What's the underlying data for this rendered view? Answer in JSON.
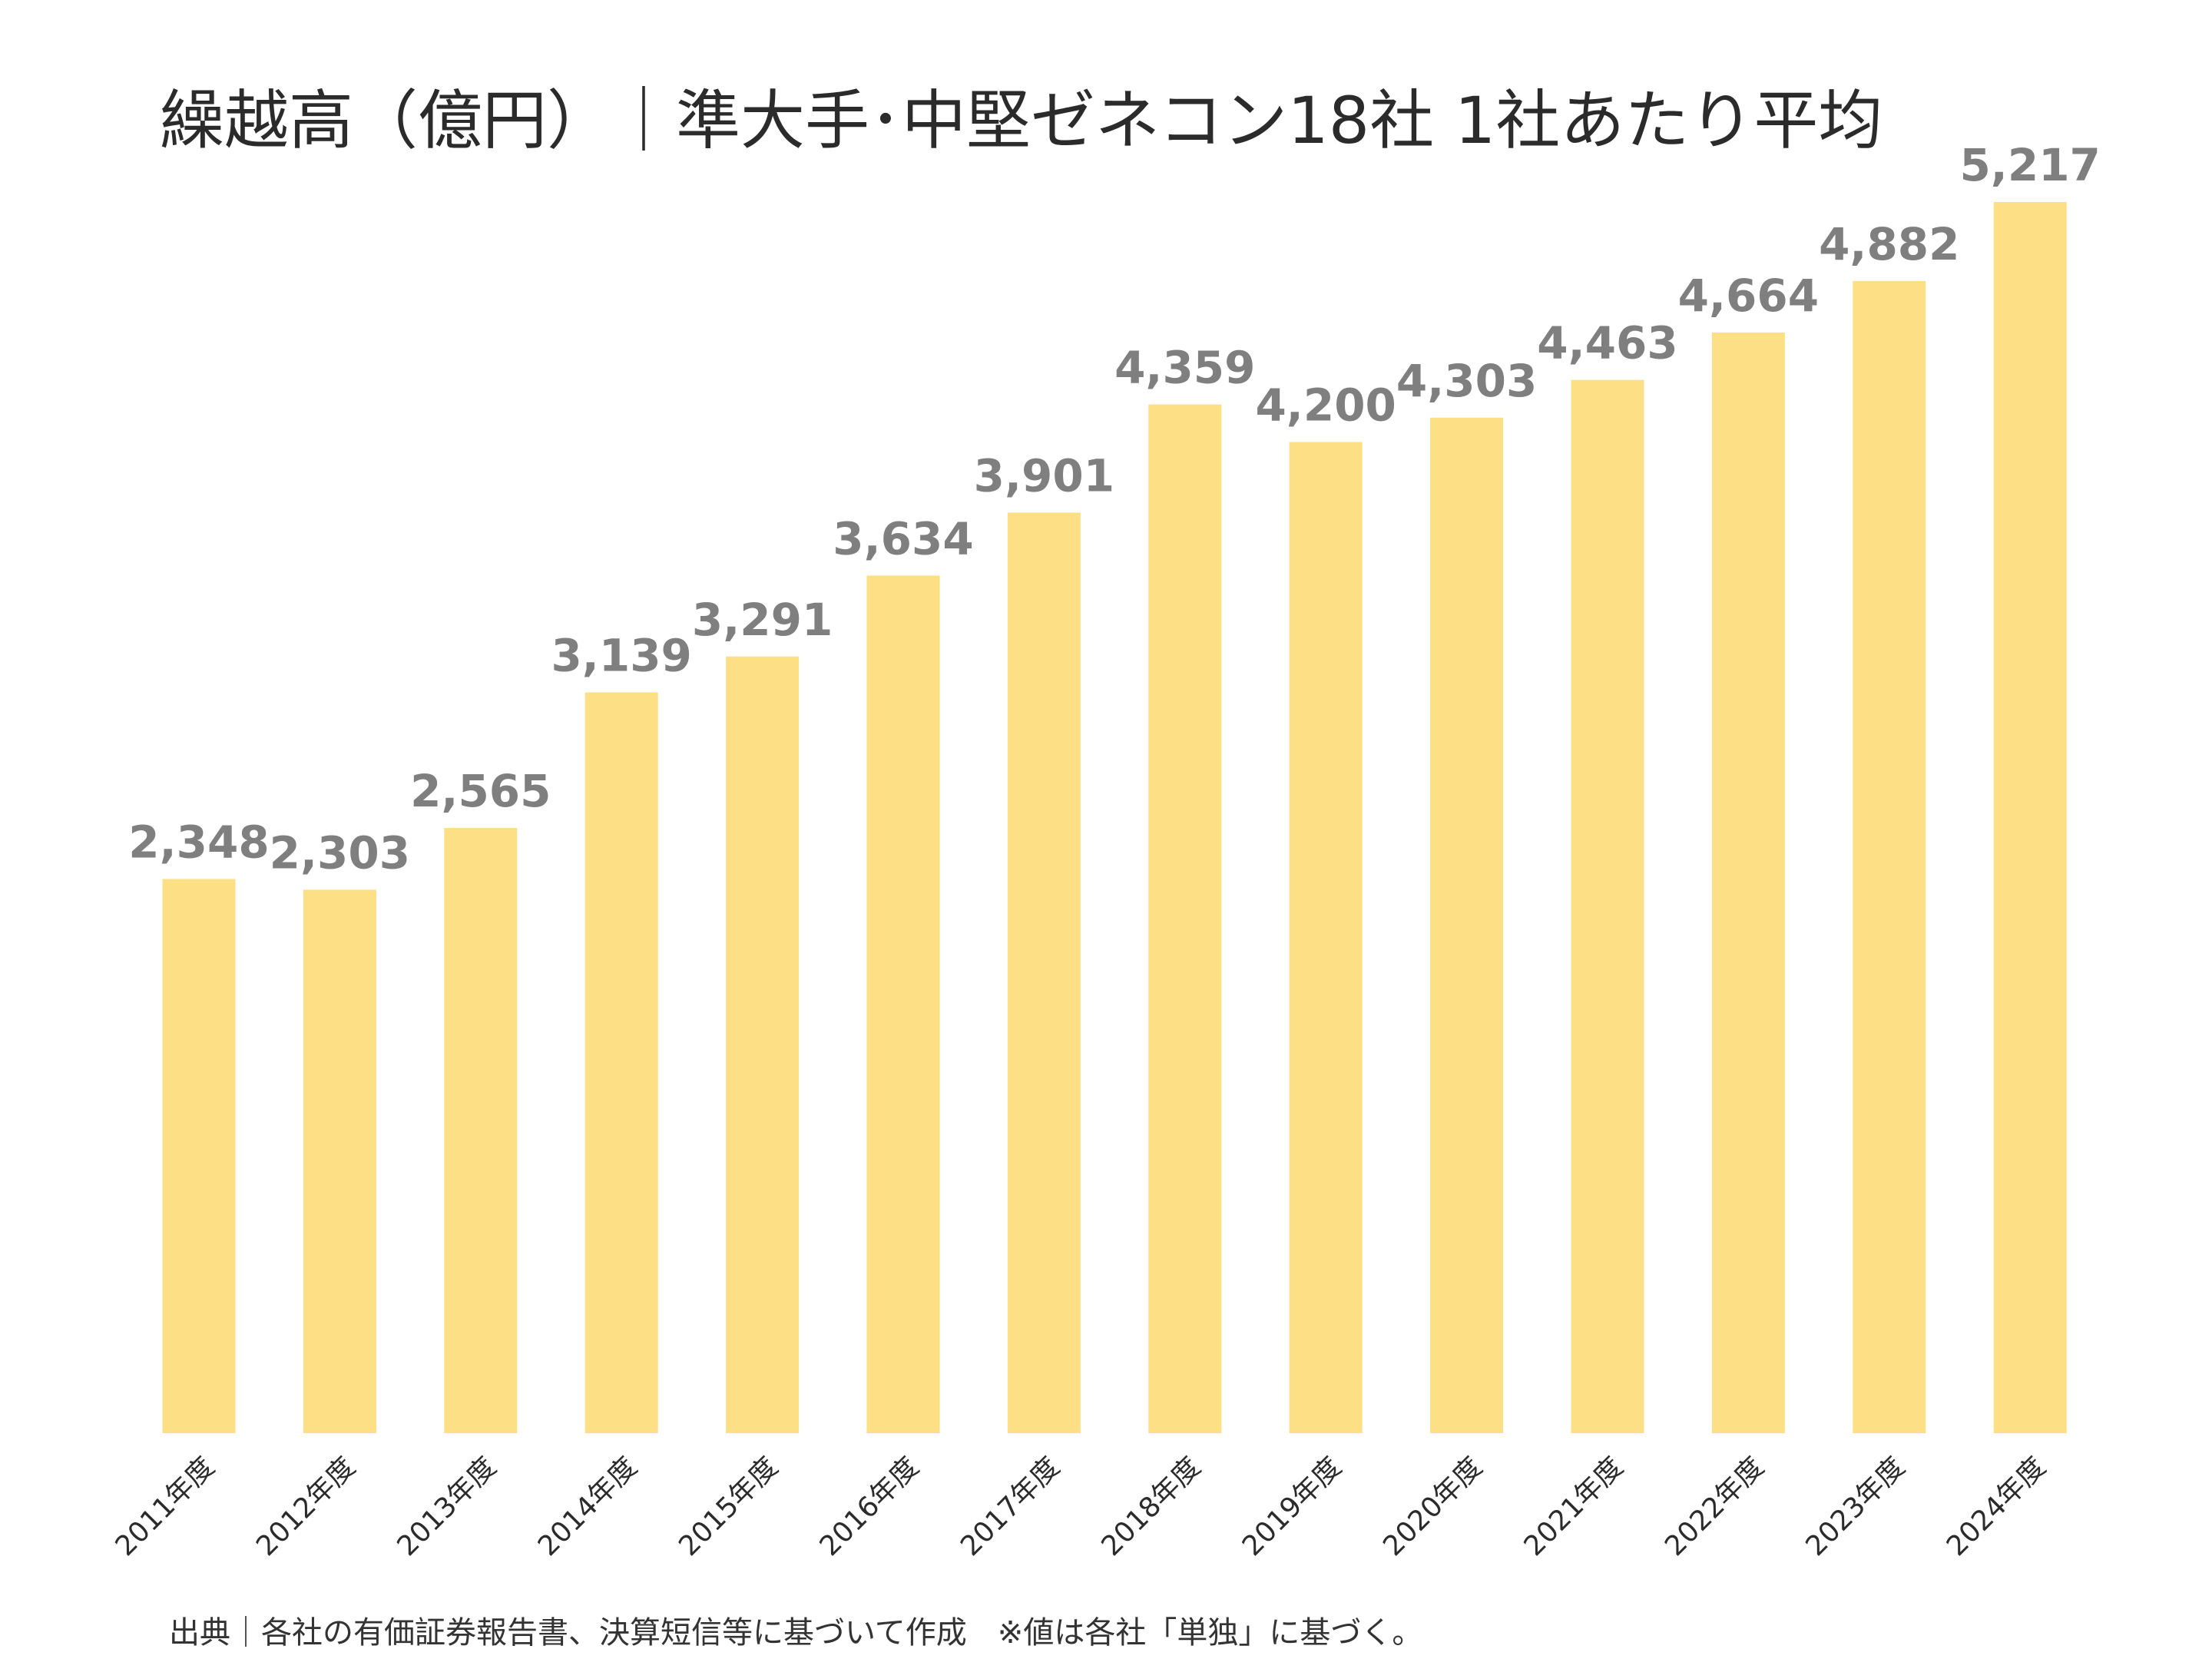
{
  "chart_data": {
    "type": "bar",
    "title": "繰越高（億円）｜準大手･中堅ゼネコン18社 1社あたり平均",
    "categories": [
      "2011年度",
      "2012年度",
      "2013年度",
      "2014年度",
      "2015年度",
      "2016年度",
      "2017年度",
      "2018年度",
      "2019年度",
      "2020年度",
      "2021年度",
      "2022年度",
      "2023年度",
      "2024年度"
    ],
    "values": [
      2348,
      2303,
      2565,
      3139,
      3291,
      3634,
      3901,
      4359,
      4200,
      4303,
      4463,
      4664,
      4882,
      5217
    ],
    "value_labels": [
      "2,348",
      "2,303",
      "2,565",
      "3,139",
      "3,291",
      "3,634",
      "3,901",
      "4,359",
      "4,200",
      "4,303",
      "4,463",
      "4,664",
      "4,882",
      "5,217"
    ],
    "xlabel": "",
    "ylabel": "",
    "ylim": [
      0,
      5217
    ],
    "grid": false,
    "legend": "none",
    "bar_color": "#FDDF85",
    "label_color": "#7F7F7F"
  },
  "footnote": "出典｜各社の有価証券報告書、決算短信等に基づいて作成　※値は各社「単独」に基づく。"
}
